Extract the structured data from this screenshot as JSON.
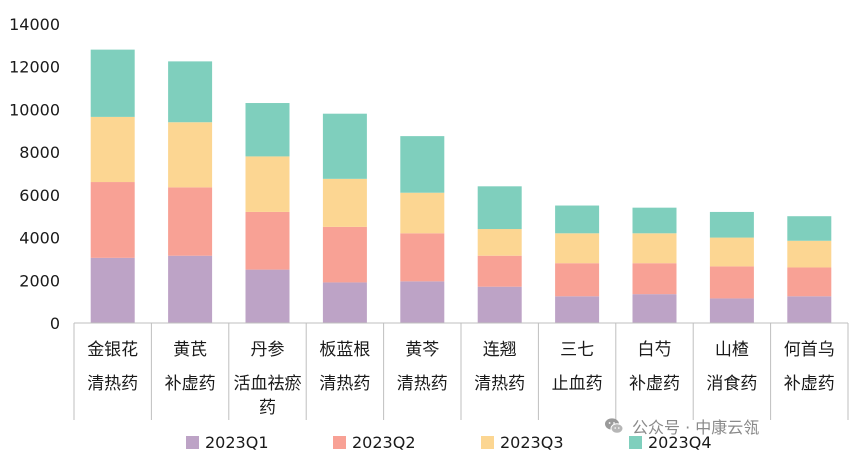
{
  "chart_data": {
    "type": "bar",
    "stacked": true,
    "categories": [
      {
        "name": "金银花",
        "group": "清热药"
      },
      {
        "name": "黄芪",
        "group": "补虚药"
      },
      {
        "name": "丹参",
        "group": "活血祛瘀药"
      },
      {
        "name": "板蓝根",
        "group": "清热药"
      },
      {
        "name": "黄芩",
        "group": "清热药"
      },
      {
        "name": "连翘",
        "group": "清热药"
      },
      {
        "name": "三七",
        "group": "止血药"
      },
      {
        "name": "白芍",
        "group": "补虚药"
      },
      {
        "name": "山楂",
        "group": "消食药"
      },
      {
        "name": "何首乌",
        "group": "补虚药"
      }
    ],
    "series": [
      {
        "name": "2023Q1",
        "color": "#bda3c6",
        "values": [
          3050,
          3150,
          2500,
          1900,
          1950,
          1700,
          1250,
          1350,
          1150,
          1250
        ]
      },
      {
        "name": "2023Q2",
        "color": "#f8a195",
        "values": [
          3550,
          3200,
          2700,
          2600,
          2250,
          1450,
          1550,
          1450,
          1500,
          1350
        ]
      },
      {
        "name": "2023Q3",
        "color": "#fcd692",
        "values": [
          3050,
          3050,
          2600,
          2250,
          1900,
          1250,
          1400,
          1400,
          1350,
          1250
        ]
      },
      {
        "name": "2023Q4",
        "color": "#7fcfbd",
        "values": [
          3150,
          2850,
          2500,
          3050,
          2650,
          2000,
          1300,
          1200,
          1200,
          1150
        ]
      }
    ],
    "ylim": [
      0,
      14000
    ],
    "yticks": [
      0,
      2000,
      4000,
      6000,
      8000,
      10000,
      12000,
      14000
    ],
    "grid": false,
    "legend": "bottom"
  },
  "watermark": {
    "text": "公众号 · 中康云瓴",
    "icon": "wechat-icon"
  }
}
